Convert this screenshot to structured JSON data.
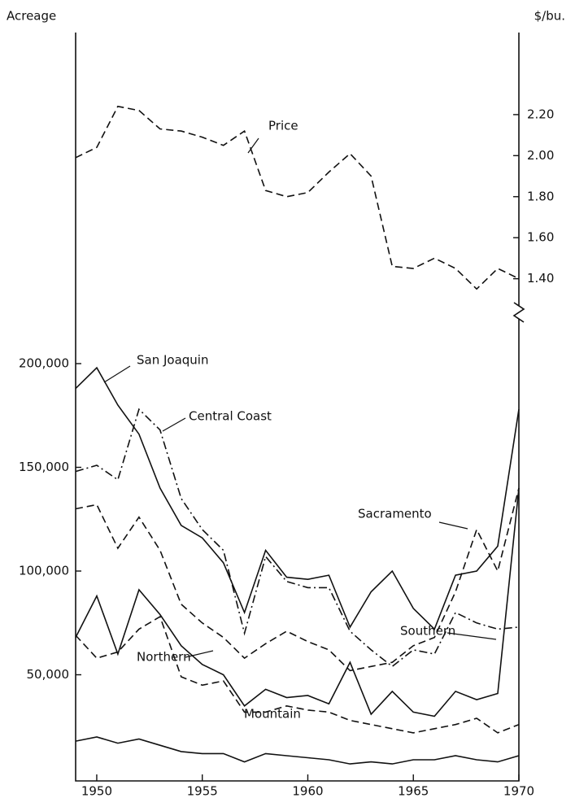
{
  "chart_data": {
    "type": "line",
    "y_label": "Acreage",
    "y2_label": "$/bu.",
    "x": [
      1949,
      1950,
      1951,
      1952,
      1953,
      1954,
      1955,
      1956,
      1957,
      1958,
      1959,
      1960,
      1961,
      1962,
      1963,
      1964,
      1965,
      1966,
      1967,
      1968,
      1969,
      1970
    ],
    "xlim": [
      1949,
      1970
    ],
    "xticks": [
      1950,
      1955,
      1960,
      1965,
      1970
    ],
    "ylim": [
      0,
      200000
    ],
    "yticks": [
      {
        "value": 50000,
        "label": "50,000"
      },
      {
        "value": 100000,
        "label": "100,000"
      },
      {
        "value": 150000,
        "label": "150,000"
      },
      {
        "value": 200000,
        "label": "200,000"
      }
    ],
    "y2lim": [
      1.24,
      2.6
    ],
    "y2ticks": [
      {
        "value": 1.4,
        "label": "1.40"
      },
      {
        "value": 1.6,
        "label": "1.60"
      },
      {
        "value": 1.8,
        "label": "1.80"
      },
      {
        "value": 2.0,
        "label": "2.00"
      },
      {
        "value": 2.2,
        "label": "2.20"
      }
    ],
    "series": [
      {
        "name": "Price",
        "color": "#111111",
        "style": "dashed",
        "axis": "y2",
        "values": [
          1.99,
          2.04,
          2.24,
          2.22,
          2.13,
          2.12,
          2.09,
          2.05,
          2.12,
          1.83,
          1.8,
          1.82,
          1.92,
          2.01,
          1.9,
          1.46,
          1.45,
          1.5,
          1.45,
          1.35,
          1.45,
          1.4
        ]
      },
      {
        "name": "San Joaquin",
        "color": "#111111",
        "style": "solid",
        "values": [
          188000,
          198000,
          180000,
          166000,
          140000,
          122000,
          116000,
          104000,
          80000,
          110000,
          97000,
          96000,
          98000,
          73000,
          90000,
          100000,
          82000,
          72000,
          98000,
          100000,
          112000,
          178000
        ]
      },
      {
        "name": "Central Coast",
        "color": "#111111",
        "style": "dashdot",
        "values": [
          148000,
          151000,
          144000,
          178000,
          168000,
          135000,
          120000,
          110000,
          70000,
          107000,
          95000,
          92000,
          92000,
          71000,
          62000,
          54000,
          62000,
          60000,
          80000,
          75000,
          72000,
          73000
        ]
      },
      {
        "name": "Sacramento",
        "color": "#111111",
        "style": "dashed",
        "values": [
          130000,
          132000,
          111000,
          126000,
          110000,
          84000,
          75000,
          68000,
          58000,
          65000,
          71000,
          66000,
          62000,
          52000,
          54000,
          56000,
          64000,
          68000,
          90000,
          120000,
          100000,
          140000
        ]
      },
      {
        "name": "Southern",
        "color": "#111111",
        "style": "solid",
        "values": [
          68000,
          88000,
          60000,
          91000,
          79000,
          64000,
          55000,
          50000,
          35000,
          43000,
          39000,
          40000,
          36000,
          56000,
          31000,
          42000,
          32000,
          30000,
          42000,
          38000,
          41000,
          140000
        ]
      },
      {
        "name": "Northern",
        "color": "#111111",
        "style": "dashed",
        "values": [
          69000,
          58000,
          61000,
          72000,
          78000,
          49000,
          45000,
          47000,
          32000,
          32000,
          35000,
          33000,
          32000,
          28000,
          26000,
          24000,
          22000,
          24000,
          26000,
          29000,
          22000,
          26000
        ]
      },
      {
        "name": "Mountain",
        "color": "#111111",
        "style": "solid",
        "values": [
          18000,
          20000,
          17000,
          19000,
          16000,
          13000,
          12000,
          12000,
          8000,
          12000,
          11000,
          10000,
          9000,
          7000,
          8000,
          7000,
          9000,
          9000,
          11000,
          9000,
          8000,
          11000
        ]
      }
    ]
  }
}
